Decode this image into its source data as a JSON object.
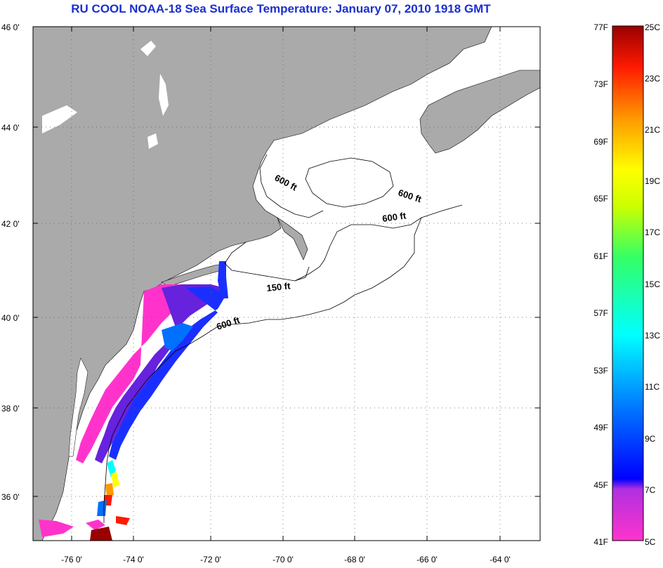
{
  "title": "RU COOL  NOAA-18  Sea Surface Temperature:  January 07, 2010 1918 GMT",
  "map": {
    "lat_labels": [
      "46 0'",
      "44 0'",
      "42 0'",
      "40 0'",
      "38 0'",
      "36 0'"
    ],
    "lon_labels": [
      "-76 0'",
      "-74 0'",
      "-72 0'",
      "-70 0'",
      "-68 0'",
      "-66 0'",
      "-64 0'"
    ],
    "contour_labels": [
      "600 ft",
      "600 ft",
      "600 ft",
      "150 ft",
      "600 ft"
    ],
    "land_color": "#aaaaaa",
    "water_color": "#ffffff"
  },
  "colorbar": {
    "fahrenheit_labels": [
      "77F",
      "73F",
      "69F",
      "65F",
      "61F",
      "57F",
      "53F",
      "49F",
      "45F",
      "41F"
    ],
    "celsius_labels": [
      "25C",
      "23C",
      "21C",
      "19C",
      "17C",
      "15C",
      "13C",
      "11C",
      "9C",
      "7C",
      "5C"
    ],
    "colors": [
      "#ff33cc",
      "#9933cc",
      "#0000ff",
      "#0099ff",
      "#00ffff",
      "#33ff99",
      "#ffff00",
      "#ff9900",
      "#ff0000",
      "#990000"
    ]
  }
}
